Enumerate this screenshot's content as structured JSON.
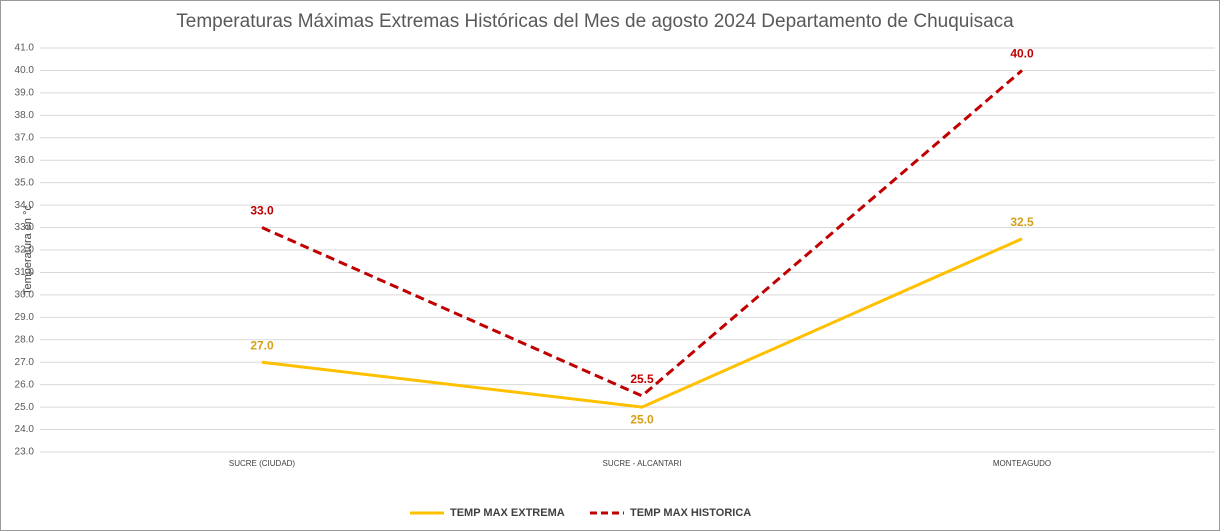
{
  "chart_data": {
    "type": "line",
    "title": "Temperaturas Máximas Extremas Históricas del Mes de agosto 2024 Departamento de Chuquisaca",
    "y_label": "Temperatura en °c",
    "categories": [
      "SUCRE (CIUDAD)",
      "SUCRE - ALCANTARI",
      "MONTEAGUDO"
    ],
    "series": [
      {
        "name": "TEMP MAX EXTREMA",
        "color": "#ffc000",
        "label_color": "#d4a017",
        "dashed": false,
        "values": [
          27,
          25,
          32.5
        ],
        "value_labels": [
          "27.0",
          "25.0",
          "32.5"
        ]
      },
      {
        "name": "TEMP MAX HISTORICA",
        "color": "#c00000",
        "label_color": "#c00000",
        "dashed": true,
        "values": [
          33,
          25.5,
          40
        ],
        "value_labels": [
          "33.0",
          "25.5",
          "40.0"
        ]
      }
    ],
    "ylim": [
      23,
      41
    ],
    "yticks": [
      {
        "value": 23,
        "label": "23.0"
      },
      {
        "value": 24,
        "label": "24.0"
      },
      {
        "value": 25,
        "label": "25.0"
      },
      {
        "value": 26,
        "label": "26.0"
      },
      {
        "value": 27,
        "label": "27.0"
      },
      {
        "value": 28,
        "label": "28.0"
      },
      {
        "value": 29,
        "label": "29.0"
      },
      {
        "value": 30,
        "label": "30.0"
      },
      {
        "value": 31,
        "label": "31.0"
      },
      {
        "value": 32,
        "label": "32.0"
      },
      {
        "value": 33,
        "label": "33.0"
      },
      {
        "value": 34,
        "label": "34.0"
      },
      {
        "value": 35,
        "label": "35.0"
      },
      {
        "value": 36,
        "label": "36.0"
      },
      {
        "value": 37,
        "label": "37.0"
      },
      {
        "value": 38,
        "label": "38.0"
      },
      {
        "value": 39,
        "label": "39.0"
      },
      {
        "value": 40,
        "label": "40.0"
      },
      {
        "value": 41,
        "label": "41.0"
      }
    ],
    "grid": true,
    "legend": "bottom"
  }
}
